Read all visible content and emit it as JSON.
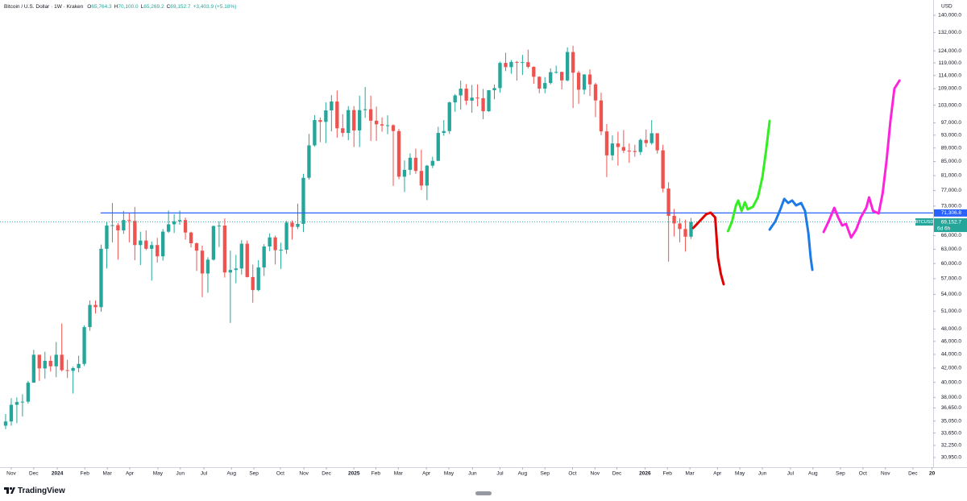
{
  "chart_data": {
    "type": "candlestick",
    "title": "Bitcoin / U.S. Dollar · 1W · Kraken",
    "ohlc_legend": [
      {
        "label": "O",
        "value": "65,764.3"
      },
      {
        "label": "H",
        "value": "70,100.0"
      },
      {
        "label": "L",
        "value": "65,269.2"
      },
      {
        "label": "C",
        "value": "69,152.7"
      }
    ],
    "change": "+3,403.9 (+5.18%)",
    "currency": "USD",
    "brand": "TradingView",
    "log_scale": true,
    "grid": false,
    "up_color": "#26a69a",
    "down_color": "#ef5350",
    "xlim": [
      -1,
      165.1
    ],
    "ylim": [
      30110,
      147500
    ],
    "open": [
      34500,
      35000,
      37050,
      37400,
      37450,
      39950,
      43950,
      41950,
      43050,
      42250,
      43950,
      41700,
      41600,
      42000,
      42600,
      48300,
      52100,
      51700,
      63100,
      68300,
      68400,
      67200,
      69600,
      69400,
      63900,
      64900,
      63100,
      63900,
      61500,
      66900,
      68600,
      69300,
      69600,
      66700,
      64300,
      62700,
      58000,
      60800,
      68200,
      68300,
      58200,
      58700,
      59000,
      64200,
      57300,
      54800,
      59200,
      63600,
      65600,
      62800,
      62900,
      69000,
      68000,
      68700,
      80400,
      89800,
      97900,
      97300,
      101200,
      104300,
      95200,
      93700,
      101300,
      94500,
      101300,
      101600,
      97700,
      96500,
      96100,
      96200,
      94300,
      80700,
      82600,
      86100,
      82300,
      78300,
      83800,
      85200,
      93700,
      94300,
      104000,
      106500,
      109000,
      104600,
      105700,
      105500,
      100900,
      108400,
      109200,
      119000,
      117300,
      119400,
      119100,
      119300,
      117400,
      113500,
      109000,
      111100,
      115300,
      115400,
      112100,
      123500,
      115100,
      108600,
      114400,
      110600,
      104700,
      94200,
      86800,
      90400,
      89300,
      88200,
      88100,
      87800,
      91500,
      90500,
      93600,
      88300,
      77500,
      70600,
      68800,
      67500,
      65764.3
    ],
    "high": [
      35900,
      37900,
      38000,
      38400,
      40200,
      44700,
      43950,
      44400,
      43800,
      45900,
      48900,
      43200,
      42200,
      43800,
      48600,
      52900,
      52900,
      64000,
      69200,
      73800,
      68900,
      71800,
      71400,
      72800,
      66900,
      67200,
      64700,
      65500,
      67500,
      71900,
      71000,
      71900,
      70200,
      66900,
      64500,
      63800,
      61300,
      68300,
      69300,
      70000,
      62700,
      61800,
      65000,
      64900,
      59800,
      60700,
      64100,
      66500,
      66000,
      64400,
      69400,
      69500,
      73600,
      81500,
      93400,
      99600,
      98800,
      104000,
      106600,
      108300,
      99900,
      102700,
      102700,
      106400,
      109600,
      106400,
      102500,
      98800,
      99500,
      96500,
      95000,
      85300,
      87400,
      88800,
      88500,
      84000,
      86400,
      95700,
      97900,
      104300,
      107000,
      112000,
      110700,
      110400,
      110600,
      108900,
      108500,
      110500,
      119500,
      123200,
      120200,
      119800,
      122300,
      124500,
      117600,
      113700,
      113400,
      116800,
      117900,
      115500,
      125500,
      126200,
      115900,
      114500,
      116400,
      111200,
      107500,
      96600,
      92900,
      94100,
      94600,
      90400,
      90000,
      91900,
      94800,
      97900,
      93600,
      90000,
      79200,
      72300,
      70000,
      69700,
      70100
    ],
    "low": [
      34100,
      34500,
      34800,
      35600,
      37200,
      39950,
      40200,
      40500,
      41500,
      40700,
      41500,
      40600,
      38500,
      41400,
      42300,
      47700,
      50600,
      50900,
      59000,
      64500,
      60800,
      66400,
      64500,
      60700,
      59700,
      62800,
      56600,
      60200,
      60600,
      66600,
      66600,
      68500,
      65100,
      63400,
      58500,
      53500,
      54300,
      60600,
      63500,
      57200,
      49000,
      56100,
      57800,
      57200,
      52500,
      54600,
      57500,
      62600,
      59800,
      58900,
      62000,
      65100,
      67500,
      66800,
      79900,
      89400,
      90800,
      90500,
      94200,
      92200,
      92500,
      91400,
      89300,
      89300,
      98600,
      91200,
      91200,
      94100,
      93300,
      78200,
      80000,
      76600,
      81200,
      81500,
      77100,
      74500,
      83100,
      85100,
      92800,
      93400,
      100700,
      101500,
      103100,
      100400,
      102600,
      98200,
      100700,
      105100,
      107500,
      115700,
      114700,
      112000,
      114200,
      116800,
      110800,
      107300,
      107300,
      110600,
      114700,
      108700,
      111700,
      102000,
      103500,
      106900,
      106300,
      98900,
      93000,
      80600,
      85300,
      83800,
      87500,
      84600,
      86400,
      86900,
      89300,
      90000,
      87300,
      76500,
      60400,
      65800,
      64500,
      62500,
      65269.2
    ],
    "close": [
      35000,
      37050,
      37400,
      37450,
      39950,
      43950,
      41950,
      43050,
      42250,
      43950,
      41700,
      41600,
      42000,
      42600,
      48300,
      52100,
      51700,
      63100,
      68300,
      68400,
      67200,
      69600,
      69400,
      63900,
      64900,
      63100,
      63900,
      61500,
      66900,
      68600,
      69300,
      69600,
      66700,
      64300,
      62700,
      58000,
      60800,
      68200,
      68300,
      58200,
      58700,
      59000,
      64200,
      57300,
      54800,
      59200,
      63600,
      65600,
      62800,
      62900,
      69000,
      68000,
      68700,
      80400,
      89800,
      97900,
      97300,
      101200,
      104300,
      95200,
      93700,
      101300,
      94500,
      101300,
      101600,
      97700,
      96500,
      96100,
      96200,
      94300,
      80700,
      82600,
      86100,
      82300,
      78300,
      83800,
      85200,
      93700,
      94300,
      104000,
      106500,
      109000,
      104600,
      105700,
      105500,
      100900,
      108400,
      109200,
      119000,
      117300,
      119400,
      119100,
      119300,
      117400,
      113500,
      109000,
      111100,
      115300,
      115400,
      112100,
      123500,
      115100,
      108600,
      114400,
      110600,
      104700,
      94200,
      86800,
      90400,
      89300,
      88200,
      88100,
      87800,
      91500,
      90500,
      93600,
      88300,
      77500,
      70600,
      68800,
      67500,
      65764.3,
      69152.7
    ],
    "xticks": [
      {
        "value": 1.0,
        "label": "Nov"
      },
      {
        "value": 5.0,
        "label": "Dec"
      },
      {
        "value": 9.2,
        "label": "2024"
      },
      {
        "value": 14.1,
        "label": "Feb"
      },
      {
        "value": 18.1,
        "label": "Mar"
      },
      {
        "value": 22.1,
        "label": "Apr"
      },
      {
        "value": 27.1,
        "label": "May"
      },
      {
        "value": 31.1,
        "label": "Jun"
      },
      {
        "value": 35.3,
        "label": "Jul"
      },
      {
        "value": 40.2,
        "label": "Aug"
      },
      {
        "value": 44.2,
        "label": "Sep"
      },
      {
        "value": 48.9,
        "label": "Oct"
      },
      {
        "value": 53.1,
        "label": "Nov"
      },
      {
        "value": 57.1,
        "label": "Dec"
      },
      {
        "value": 62.0,
        "label": "2025"
      },
      {
        "value": 65.9,
        "label": "Feb"
      },
      {
        "value": 69.9,
        "label": "Mar"
      },
      {
        "value": 74.9,
        "label": "Apr"
      },
      {
        "value": 78.9,
        "label": "May"
      },
      {
        "value": 83.1,
        "label": "Jun"
      },
      {
        "value": 88.0,
        "label": "Jul"
      },
      {
        "value": 92.0,
        "label": "Aug"
      },
      {
        "value": 96.0,
        "label": "Sep"
      },
      {
        "value": 100.9,
        "label": "Oct"
      },
      {
        "value": 104.9,
        "label": "Nov"
      },
      {
        "value": 108.8,
        "label": "Dec"
      },
      {
        "value": 113.8,
        "label": "2026"
      },
      {
        "value": 117.8,
        "label": "Feb"
      },
      {
        "value": 121.8,
        "label": "Mar"
      },
      {
        "value": 126.7,
        "label": "Apr"
      },
      {
        "value": 130.7,
        "label": "May"
      },
      {
        "value": 134.7,
        "label": "Jun"
      },
      {
        "value": 139.7,
        "label": "Jul"
      },
      {
        "value": 143.7,
        "label": "Aug"
      },
      {
        "value": 148.6,
        "label": "Sep"
      },
      {
        "value": 152.6,
        "label": "Oct"
      },
      {
        "value": 156.6,
        "label": "Nov"
      },
      {
        "value": 161.5,
        "label": "Dec"
      },
      {
        "value": 164.9,
        "label": "20"
      }
    ],
    "yticks": [
      {
        "value": 140000,
        "label": "140,000.0"
      },
      {
        "value": 132000,
        "label": "132,000.0"
      },
      {
        "value": 124000,
        "label": "124,000.0"
      },
      {
        "value": 119000,
        "label": "119,000.0"
      },
      {
        "value": 114000,
        "label": "114,000.0"
      },
      {
        "value": 109000,
        "label": "109,000.0"
      },
      {
        "value": 103000,
        "label": "103,000.0"
      },
      {
        "value": 97000,
        "label": "97,000.0"
      },
      {
        "value": 93000,
        "label": "93,000.0"
      },
      {
        "value": 89000,
        "label": "89,000.0"
      },
      {
        "value": 85000,
        "label": "85,000.0"
      },
      {
        "value": 81000,
        "label": "81,000.0"
      },
      {
        "value": 77000,
        "label": "77,000.0"
      },
      {
        "value": 73000,
        "label": "73,000.0"
      },
      {
        "value": 66000,
        "label": "66,000.0"
      },
      {
        "value": 63000,
        "label": "63,000.0"
      },
      {
        "value": 60000,
        "label": "60,000.0"
      },
      {
        "value": 57000,
        "label": "57,000.0"
      },
      {
        "value": 54000,
        "label": "54,000.0"
      },
      {
        "value": 51000,
        "label": "51,000.0"
      },
      {
        "value": 48000,
        "label": "48,000.0"
      },
      {
        "value": 46000,
        "label": "46,000.0"
      },
      {
        "value": 44000,
        "label": "44,000.0"
      },
      {
        "value": 42000,
        "label": "42,000.0"
      },
      {
        "value": 40000,
        "label": "40,000.0"
      },
      {
        "value": 38000,
        "label": "38,000.0"
      },
      {
        "value": 36650,
        "label": "36,650.0"
      },
      {
        "value": 35050,
        "label": "35,050.0"
      },
      {
        "value": 33650,
        "label": "33,650.0"
      },
      {
        "value": 32250,
        "label": "32,250.0"
      },
      {
        "value": 30950,
        "label": "30,950.0"
      }
    ],
    "hline": {
      "value": 71306.8,
      "label": "71,306.8",
      "color": "#2962ff",
      "x_start": 16.9
    },
    "last_price": {
      "value": 69152.7,
      "label": "69,152.7",
      "symbol": "BTCUSD",
      "countdown": "6d 6h",
      "color": "#26a69a"
    },
    "drawings": [
      {
        "color": "#e00000",
        "x": [
          122.4,
          123.5,
          124.7,
          125.5,
          126.3,
          126.5,
          126.8,
          127.3,
          127.8
        ],
        "y": [
          67760,
          69270,
          71000,
          71390,
          70220,
          66470,
          61200,
          57930,
          55900
        ]
      },
      {
        "color": "#33ee22",
        "x": [
          128.6,
          129.3,
          130.0,
          130.4,
          131.0,
          131.6,
          132.1,
          133.0,
          133.9,
          134.7,
          135.4,
          136.0
        ],
        "y": [
          67020,
          69270,
          73180,
          74400,
          71790,
          73990,
          72190,
          72800,
          75220,
          80570,
          88700,
          97660
        ]
      },
      {
        "color": "#1e7be6",
        "x": [
          136.0,
          137.0,
          137.9,
          138.6,
          139.3,
          140.0,
          140.7,
          141.6,
          142.3,
          142.9,
          143.3,
          143.6
        ],
        "y": [
          67380,
          69270,
          72190,
          74820,
          73780,
          74400,
          73180,
          73780,
          71790,
          66470,
          61200,
          58730
        ]
      },
      {
        "color": "#ff22dd",
        "x": [
          145.6,
          146.5,
          147.5,
          148.2,
          148.9,
          149.6,
          150.5,
          151.4,
          152.2,
          153.2,
          153.7,
          154.4,
          155.4,
          156.1,
          156.8,
          157.5,
          158.2,
          159.1
        ],
        "y": [
          66830,
          69270,
          72580,
          70220,
          68320,
          68700,
          65560,
          67380,
          70220,
          72580,
          75220,
          71790,
          71190,
          76260,
          85120,
          97660,
          109020,
          112060
        ]
      }
    ]
  }
}
